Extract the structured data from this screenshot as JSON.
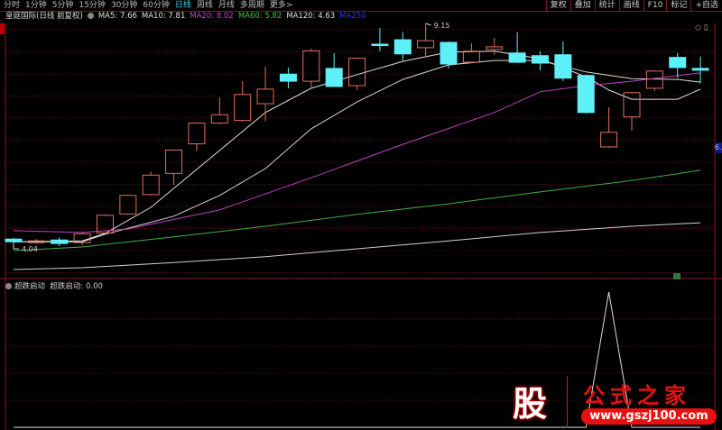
{
  "toolbar": {
    "periods": [
      "分时",
      "1分钟",
      "5分钟",
      "15分钟",
      "30分钟",
      "60分钟",
      "日线",
      "周线",
      "月线",
      "多周期",
      "更多>"
    ],
    "active_period": "日线",
    "tools": [
      "复权",
      "叠加",
      "统计",
      "画线",
      "F10",
      "标记",
      "+自选"
    ]
  },
  "legend": {
    "title": "皇庭国际(日线 前复权)",
    "ma": [
      {
        "label": "MA5: 7.66",
        "color": "#e0e0e0"
      },
      {
        "label": "MA10: 7.81",
        "color": "#e0e0e0"
      },
      {
        "label": "MA20: 8.02",
        "color": "#d040d0"
      },
      {
        "label": "MA60: 5.82",
        "color": "#40c040"
      },
      {
        "label": "MA120: 4.63",
        "color": "#e0e0e0"
      },
      {
        "label": "MA250",
        "color": "#3030e0"
      }
    ]
  },
  "indicator": {
    "label": "超跌启动",
    "value_text": "超跌启动: 0.00"
  },
  "price_tag": "6.",
  "annotations": {
    "high": "9.15",
    "low": "4.04"
  },
  "logo": {
    "char": "股",
    "name": "公式之家",
    "url": "www.gszj100.com"
  },
  "colors": {
    "up": "#e07060",
    "down": "#5ef0f8",
    "grid": "#6a1018",
    "ma5": "#e0e0e0",
    "ma10": "#d8d8c8",
    "ma20": "#c040c0",
    "ma60": "#40b040",
    "ma120": "#d0d0d0"
  },
  "chart_data": {
    "type": "candlestick",
    "price_range": [
      3.4,
      9.3
    ],
    "candles": [
      [
        4.26,
        4.29,
        4.04,
        4.2
      ],
      [
        4.18,
        4.26,
        4.16,
        4.22
      ],
      [
        4.24,
        4.3,
        4.1,
        4.16
      ],
      [
        4.18,
        4.42,
        4.12,
        4.38
      ],
      [
        4.4,
        4.82,
        4.38,
        4.8
      ],
      [
        4.83,
        5.27,
        4.81,
        5.25
      ],
      [
        5.27,
        5.79,
        5.25,
        5.71
      ],
      [
        5.75,
        6.3,
        5.49,
        6.28
      ],
      [
        6.42,
        6.91,
        6.26,
        6.89
      ],
      [
        6.89,
        7.47,
        6.87,
        7.08
      ],
      [
        6.95,
        7.84,
        6.93,
        7.54
      ],
      [
        7.33,
        8.17,
        6.93,
        7.66
      ],
      [
        8.0,
        8.15,
        7.68,
        7.84
      ],
      [
        7.84,
        8.58,
        7.7,
        8.53
      ],
      [
        8.13,
        8.48,
        7.72,
        7.72
      ],
      [
        7.74,
        8.38,
        7.64,
        8.36
      ],
      [
        8.68,
        9.05,
        8.52,
        8.66
      ],
      [
        8.78,
        8.96,
        8.31,
        8.46
      ],
      [
        8.6,
        9.15,
        8.38,
        8.76
      ],
      [
        8.72,
        8.74,
        8.13,
        8.23
      ],
      [
        8.27,
        8.7,
        8.25,
        8.52
      ],
      [
        8.56,
        8.82,
        8.44,
        8.62
      ],
      [
        8.48,
        8.95,
        8.25,
        8.27
      ],
      [
        8.42,
        8.52,
        8.09,
        8.25
      ],
      [
        8.44,
        8.74,
        7.85,
        7.91
      ],
      [
        7.97,
        7.99,
        7.11,
        7.13
      ],
      [
        6.35,
        7.25,
        6.33,
        6.68
      ],
      [
        7.03,
        7.6,
        6.72,
        7.58
      ],
      [
        7.68,
        8.09,
        7.62,
        8.07
      ],
      [
        8.38,
        8.48,
        7.91,
        8.15
      ],
      [
        8.13,
        8.4,
        7.79,
        8.09
      ]
    ],
    "candle_fields": [
      "open",
      "high",
      "low",
      "close"
    ],
    "ma_series": [
      {
        "name": "MA5",
        "points": [
          [
            1,
            4.2
          ],
          [
            4,
            4.22
          ],
          [
            5,
            4.39
          ],
          [
            7,
            4.98
          ],
          [
            10,
            6.27
          ],
          [
            12,
            7.13
          ],
          [
            14,
            7.68
          ],
          [
            16,
            7.99
          ],
          [
            18,
            8.29
          ],
          [
            20,
            8.5
          ],
          [
            22,
            8.52
          ],
          [
            24,
            8.35
          ],
          [
            26,
            7.94
          ],
          [
            27,
            7.64
          ],
          [
            28,
            7.43
          ],
          [
            30,
            7.43
          ],
          [
            31,
            7.66
          ]
        ]
      },
      {
        "name": "MA10",
        "points": [
          [
            1,
            4.2
          ],
          [
            4,
            4.2
          ],
          [
            5,
            4.37
          ],
          [
            8,
            4.78
          ],
          [
            10,
            5.25
          ],
          [
            12,
            5.86
          ],
          [
            14,
            6.76
          ],
          [
            16,
            7.37
          ],
          [
            18,
            7.88
          ],
          [
            20,
            8.21
          ],
          [
            22,
            8.31
          ],
          [
            24,
            8.31
          ],
          [
            26,
            8.05
          ],
          [
            28,
            7.9
          ],
          [
            30,
            7.88
          ],
          [
            31,
            7.82
          ]
        ]
      },
      {
        "name": "MA20",
        "points": [
          [
            1,
            4.45
          ],
          [
            4,
            4.41
          ],
          [
            6,
            4.49
          ],
          [
            10,
            4.92
          ],
          [
            14,
            5.65
          ],
          [
            18,
            6.41
          ],
          [
            22,
            7.13
          ],
          [
            24,
            7.6
          ],
          [
            26,
            7.74
          ],
          [
            28,
            7.84
          ],
          [
            31,
            8.03
          ]
        ]
      },
      {
        "name": "MA60",
        "points": [
          [
            1,
            4.0
          ],
          [
            4,
            4.08
          ],
          [
            8,
            4.31
          ],
          [
            12,
            4.55
          ],
          [
            16,
            4.82
          ],
          [
            20,
            5.06
          ],
          [
            24,
            5.33
          ],
          [
            28,
            5.59
          ],
          [
            31,
            5.82
          ]
        ]
      },
      {
        "name": "MA120",
        "points": [
          [
            1,
            3.57
          ],
          [
            4,
            3.61
          ],
          [
            8,
            3.73
          ],
          [
            12,
            3.86
          ],
          [
            16,
            4.04
          ],
          [
            20,
            4.22
          ],
          [
            24,
            4.41
          ],
          [
            28,
            4.55
          ],
          [
            31,
            4.63
          ]
        ]
      }
    ],
    "indicator_values": [
      0,
      0,
      0,
      0,
      0,
      0,
      0,
      0,
      0,
      0,
      0,
      0,
      0,
      0,
      0,
      0,
      0,
      0,
      0,
      0,
      0,
      0,
      0,
      0,
      0,
      0,
      1,
      0,
      0,
      0,
      0
    ],
    "indicator_range": [
      0,
      1
    ],
    "high_mark": {
      "index": 19,
      "value": 9.15
    },
    "low_mark": {
      "index": 1,
      "value": 4.04
    }
  }
}
